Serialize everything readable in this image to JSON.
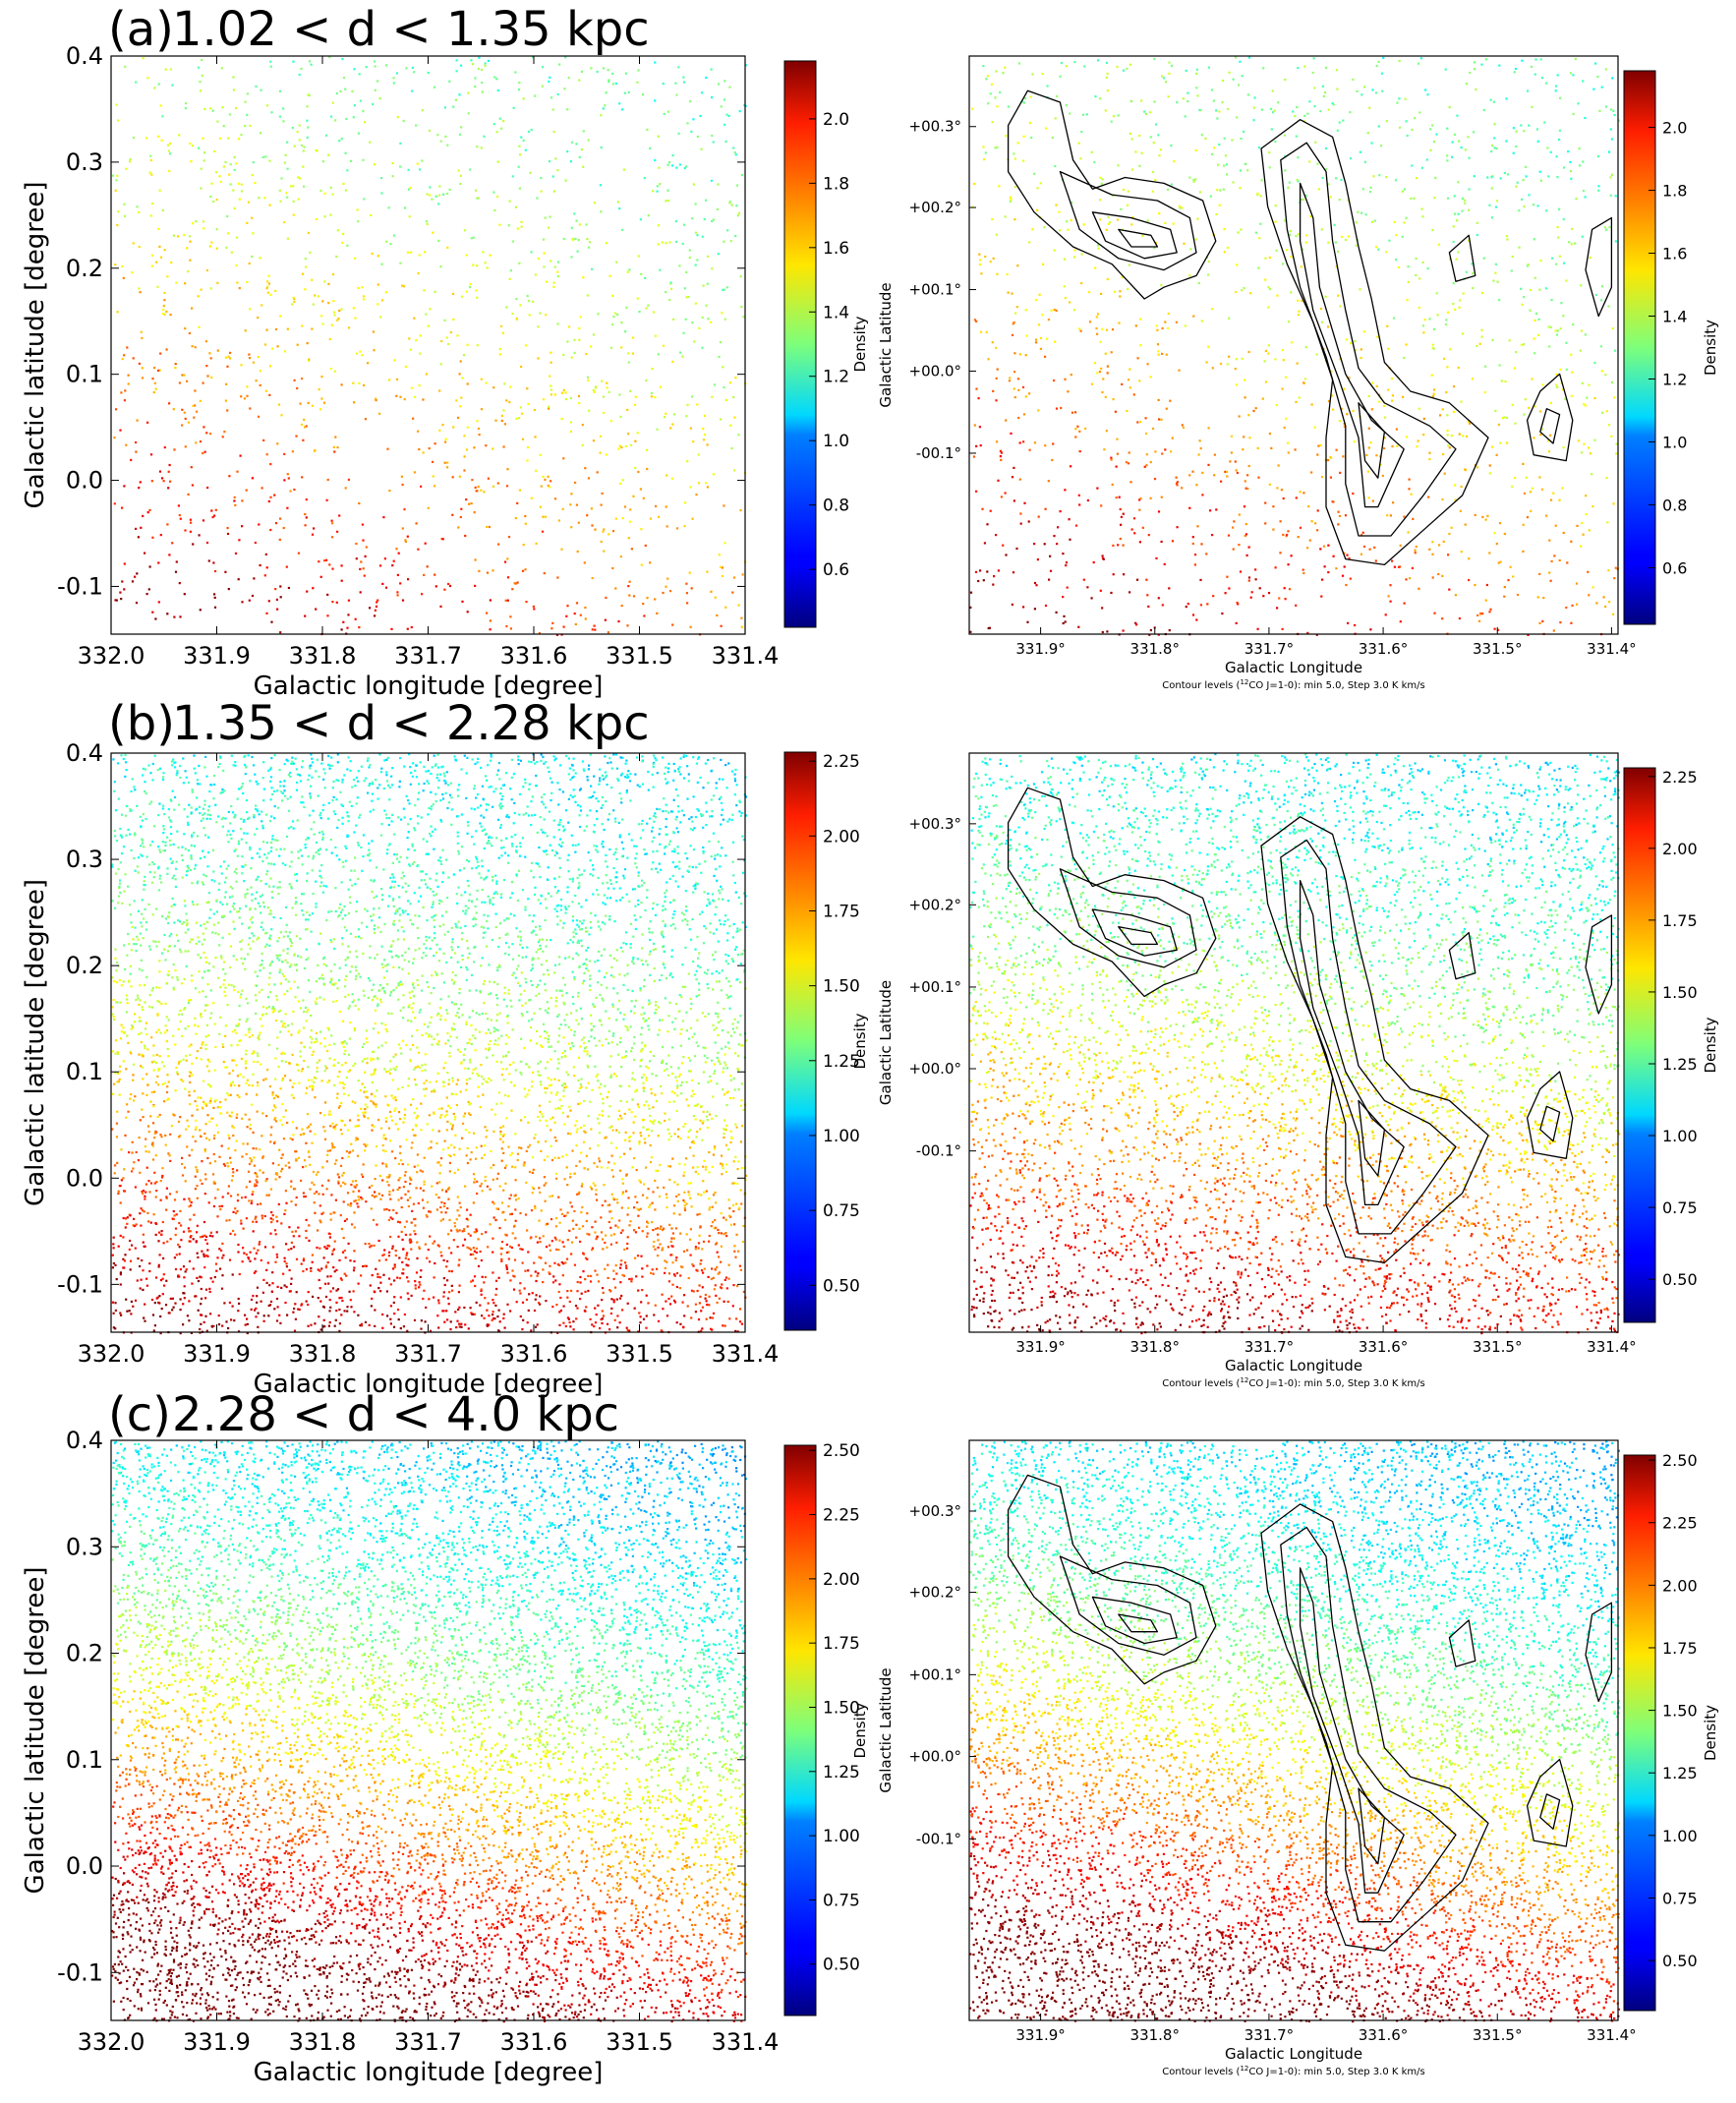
{
  "chart_data": [
    {
      "id": "a",
      "type": "scatter",
      "title": "(a) 1.02 < d < 1.35 kpc",
      "panel_letter": "(a)",
      "range_text": "1.02 < d < 1.35 kpc",
      "xlabel": "Galactic longitude [degree]",
      "ylabel": "Galactic latitude [degree]",
      "xlim": [
        332.0,
        331.4
      ],
      "ylim": [
        -0.145,
        0.4
      ],
      "x_ticks": [
        "332.0",
        "331.9",
        "331.8",
        "331.7",
        "331.6",
        "331.5",
        "331.4"
      ],
      "y_ticks": [
        "0.4",
        "0.3",
        "0.2",
        "0.1",
        "0.0",
        "-0.1"
      ],
      "colorbar": {
        "label": "Density",
        "min": 0.42,
        "max": 2.18,
        "ticks": [
          "2.0",
          "1.8",
          "1.6",
          "1.4",
          "1.2",
          "1.0",
          "0.8",
          "0.6"
        ]
      },
      "density_field": {
        "n_points": 1600,
        "base": 1.2,
        "bottom_boost": 0.55,
        "left_boost": 0.35,
        "noise": 0.15
      }
    },
    {
      "id": "b",
      "type": "scatter",
      "title": "(b) 1.35 < d < 2.28 kpc",
      "panel_letter": "(b)",
      "range_text": "1.35 < d < 2.28 kpc",
      "xlabel": "Galactic longitude [degree]",
      "ylabel": "Galactic latitude [degree]",
      "xlim": [
        332.0,
        331.4
      ],
      "ylim": [
        -0.145,
        0.4
      ],
      "x_ticks": [
        "332.0",
        "331.9",
        "331.8",
        "331.7",
        "331.6",
        "331.5",
        "331.4"
      ],
      "y_ticks": [
        "0.4",
        "0.3",
        "0.2",
        "0.1",
        "0.0",
        "-0.1"
      ],
      "colorbar": {
        "label": "Density",
        "min": 0.35,
        "max": 2.28,
        "ticks": [
          "2.25",
          "2.00",
          "1.75",
          "1.50",
          "1.25",
          "1.00",
          "0.75",
          "0.50"
        ]
      },
      "density_field": {
        "n_points": 6500,
        "base": 1.05,
        "bottom_boost": 1.0,
        "left_boost": 0.2,
        "noise": 0.15
      }
    },
    {
      "id": "c",
      "type": "scatter",
      "title": "(c) 2.28 < d < 4.0 kpc",
      "panel_letter": "(c)",
      "range_text": "2.28 < d < 4.0 kpc",
      "xlabel": "Galactic longitude [degree]",
      "ylabel": "Galactic latitude [degree]",
      "xlim": [
        332.0,
        331.4
      ],
      "ylim": [
        -0.145,
        0.4
      ],
      "x_ticks": [
        "332.0",
        "331.9",
        "331.8",
        "331.7",
        "331.6",
        "331.5",
        "331.4"
      ],
      "y_ticks": [
        "0.4",
        "0.3",
        "0.2",
        "0.1",
        "0.0",
        "-0.1"
      ],
      "colorbar": {
        "label": "Density",
        "min": 0.3,
        "max": 2.52,
        "ticks": [
          "2.50",
          "2.25",
          "2.00",
          "1.75",
          "1.50",
          "1.25",
          "1.00",
          "0.75",
          "0.50"
        ]
      },
      "density_field": {
        "n_points": 9500,
        "base": 0.95,
        "bottom_boost": 1.35,
        "left_boost": 0.5,
        "noise": 0.12
      }
    }
  ],
  "overlay_panels": {
    "xlabel": "Galactic Longitude",
    "ylabel": "Galactic Latitude",
    "x_ticks": [
      "331.9°",
      "331.8°",
      "331.7°",
      "331.6°",
      "331.5°",
      "331.4°"
    ],
    "y_ticks": [
      "+00.3°",
      "+00.2°",
      "+00.1°",
      "+00.0°",
      "-00.1°"
    ],
    "caption_prefix": "Contour levels (",
    "caption_sup": "12",
    "caption_suffix": "CO J=1-0): min 5.0, Step 3.0 K km/s",
    "contour_min": 5.0,
    "contour_step": 3.0,
    "contour_unit": "K km/s"
  }
}
